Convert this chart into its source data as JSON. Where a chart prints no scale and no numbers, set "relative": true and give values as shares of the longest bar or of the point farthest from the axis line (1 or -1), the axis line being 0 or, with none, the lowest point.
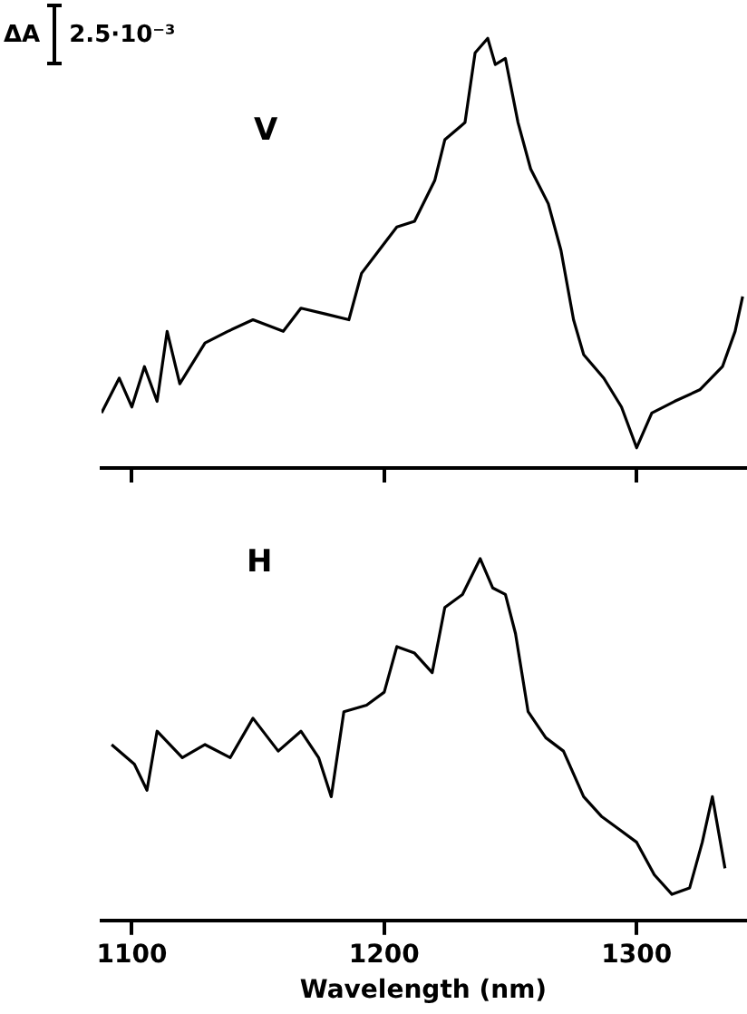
{
  "chart_data": [
    {
      "type": "line",
      "relative": true,
      "annotations": [
        "ΔA",
        "2.5·10⁻³",
        "V"
      ],
      "xlim": [
        1088,
        1343
      ],
      "xticks": [
        {
          "value": 1100,
          "label": null
        },
        {
          "value": 1200,
          "label": null
        },
        {
          "value": 1300,
          "label": null
        }
      ],
      "tick_labels": false,
      "series": [
        {
          "color": "#000000",
          "x": [
            1088,
            1095,
            1100,
            1105,
            1110,
            1114,
            1119,
            1129,
            1138,
            1148,
            1160,
            1167,
            1177,
            1186,
            1191,
            1198,
            1205,
            1212,
            1220,
            1224,
            1232,
            1236,
            1241,
            1244,
            1248,
            1253,
            1258,
            1265,
            1270,
            1275,
            1279,
            1287,
            1294,
            1300,
            1306,
            1315,
            1325,
            1334,
            1339,
            1342
          ],
          "values": [
            0.128,
            0.209,
            0.142,
            0.236,
            0.155,
            0.318,
            0.196,
            0.291,
            0.318,
            0.345,
            0.318,
            0.372,
            0.358,
            0.345,
            0.453,
            0.507,
            0.561,
            0.574,
            0.669,
            0.764,
            0.804,
            0.966,
            1.0,
            0.939,
            0.953,
            0.804,
            0.696,
            0.615,
            0.507,
            0.345,
            0.264,
            0.209,
            0.142,
            0.047,
            0.128,
            0.155,
            0.182,
            0.236,
            0.318,
            0.399
          ]
        }
      ]
    },
    {
      "type": "line",
      "relative": true,
      "annotations": [
        "H"
      ],
      "xlabel": "Wavelength (nm)",
      "xlim": [
        1088,
        1343
      ],
      "xticks": [
        1100,
        1200,
        1300
      ],
      "tick_labels": "x",
      "series": [
        {
          "color": "#000000",
          "x": [
            1092,
            1101,
            1106,
            1110,
            1120,
            1129,
            1139,
            1148,
            1158,
            1167,
            1174,
            1179,
            1184,
            1193,
            1200,
            1205,
            1212,
            1219,
            1224,
            1231,
            1238,
            1243,
            1248,
            1252,
            1257,
            1264,
            1271,
            1279,
            1286,
            1293,
            1300,
            1307,
            1314,
            1321,
            1326,
            1330,
            1335
          ],
          "values": [
            0.486,
            0.432,
            0.36,
            0.523,
            0.45,
            0.486,
            0.45,
            0.559,
            0.468,
            0.523,
            0.45,
            0.342,
            0.577,
            0.595,
            0.631,
            0.757,
            0.739,
            0.685,
            0.865,
            0.901,
            1.0,
            0.919,
            0.901,
            0.793,
            0.577,
            0.505,
            0.468,
            0.342,
            0.288,
            0.252,
            0.216,
            0.126,
            0.072,
            0.09,
            0.216,
            0.342,
            0.144
          ]
        }
      ]
    }
  ]
}
